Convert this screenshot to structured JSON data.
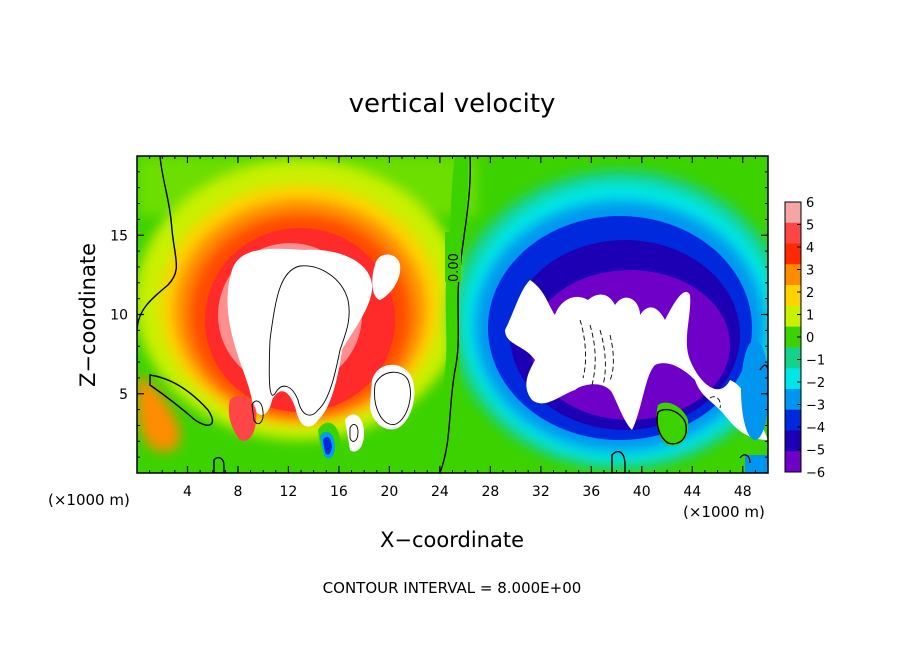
{
  "chart_data": {
    "type": "heatmap",
    "title": "vertical velocity",
    "xlabel": "X−coordinate",
    "ylabel": "Z−coordinate",
    "x_unit_label": "(×1000 m)",
    "xlim": [
      0,
      50
    ],
    "ylim": [
      0,
      20
    ],
    "x_ticks": [
      4,
      8,
      12,
      16,
      20,
      24,
      28,
      32,
      36,
      40,
      44,
      48
    ],
    "y_ticks": [
      5,
      10,
      15
    ],
    "contour_label": "0.00",
    "footer": "CONTOUR INTERVAL = 8.000E+00",
    "colorbar": {
      "min": -6,
      "max": 6,
      "ticks": [
        "6",
        "5",
        "4",
        "3",
        "2",
        "1",
        "0",
        "−1",
        "−2",
        "−3",
        "−4",
        "−5",
        "−6"
      ],
      "colors": [
        "#f4a5a5",
        "#ff4646",
        "#ff2a00",
        "#ff8c00",
        "#ffd200",
        "#c8f000",
        "#3cd200",
        "#14d28c",
        "#00e6e6",
        "#0096f0",
        "#0028dc",
        "#1e00b4",
        "#6e00c8"
      ]
    },
    "cells": [
      {
        "x": 3,
        "z": 5,
        "value": 3
      },
      {
        "x": 12,
        "z": 11,
        "value": 8
      },
      {
        "x": 10,
        "z": 15,
        "value": 5
      },
      {
        "x": 18,
        "z": 5,
        "value": 8
      },
      {
        "x": 15,
        "z": 2,
        "value": -6
      },
      {
        "x": 36,
        "z": 9,
        "value": -8
      },
      {
        "x": 32,
        "z": 12,
        "value": -5
      },
      {
        "x": 44,
        "z": 8,
        "value": -7
      },
      {
        "x": 40,
        "z": 16,
        "value": -2
      },
      {
        "x": 26,
        "z": 10,
        "value": 0
      },
      {
        "x": 1,
        "z": 15,
        "value": 0.5
      }
    ]
  }
}
